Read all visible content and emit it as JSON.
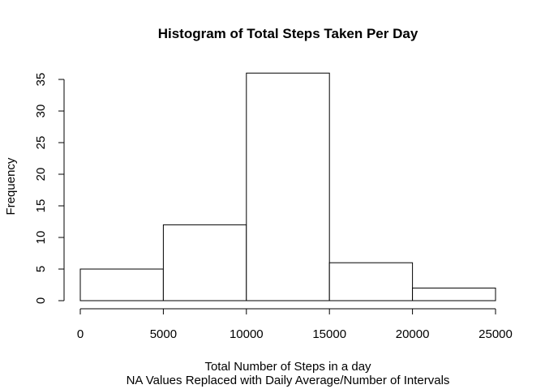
{
  "chart_data": {
    "type": "bar",
    "histogram": true,
    "title": "Histogram of Total Steps Taken Per Day",
    "xlabel": "Total Number of Steps in a day",
    "xsubtitle": "NA Values Replaced with Daily Average/Number of Intervals",
    "ylabel": "Frequency",
    "bins": [
      {
        "from": 0,
        "to": 5000,
        "count": 5
      },
      {
        "from": 5000,
        "to": 10000,
        "count": 12
      },
      {
        "from": 10000,
        "to": 15000,
        "count": 36
      },
      {
        "from": 15000,
        "to": 20000,
        "count": 6
      },
      {
        "from": 20000,
        "to": 25000,
        "count": 2
      }
    ],
    "xlim": [
      0,
      25000
    ],
    "ylim": [
      0,
      36
    ],
    "xticks": [
      0,
      5000,
      10000,
      15000,
      20000,
      25000
    ],
    "xtick_labels": [
      "0",
      "5000",
      "10000",
      "15000",
      "20000",
      "25000"
    ],
    "yticks": [
      0,
      5,
      10,
      15,
      20,
      25,
      30,
      35
    ],
    "ytick_labels": [
      "0",
      "5",
      "10",
      "15",
      "20",
      "25",
      "30",
      "35"
    ],
    "bar_fill": "#ffffff",
    "bar_stroke": "#000000",
    "grid": false,
    "legend": "none"
  }
}
